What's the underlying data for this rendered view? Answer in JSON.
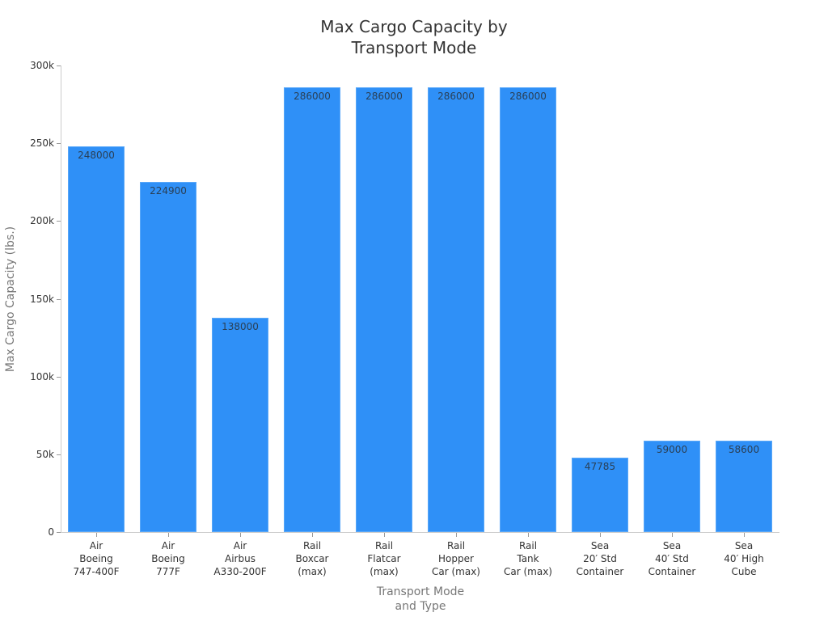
{
  "chart_data": {
    "type": "bar",
    "title": "Max Cargo Capacity by Transport Mode",
    "title_lines": [
      "Max Cargo Capacity by",
      "Transport Mode"
    ],
    "xlabel": "Transport Mode and Type",
    "xlabel_lines": [
      "Transport Mode",
      "and Type"
    ],
    "ylabel": "Max Cargo Capacity (lbs.)",
    "ylim": [
      0,
      300000
    ],
    "grid": false,
    "legend": null,
    "yticks": [
      {
        "value": 0,
        "label": "0"
      },
      {
        "value": 50000,
        "label": "50k"
      },
      {
        "value": 100000,
        "label": "100k"
      },
      {
        "value": 150000,
        "label": "150k"
      },
      {
        "value": 200000,
        "label": "200k"
      },
      {
        "value": 250000,
        "label": "250k"
      },
      {
        "value": 300000,
        "label": "300k"
      }
    ],
    "categories": [
      "Air Boeing 747-400F",
      "Air Boeing 777F",
      "Air Airbus A330-200F",
      "Rail Boxcar (max)",
      "Rail Flatcar (max)",
      "Rail Hopper Car (max)",
      "Rail Tank Car (max)",
      "Sea 20′ Std Container",
      "Sea 40′ Std Container",
      "Sea 40′ High Cube"
    ],
    "category_lines": [
      [
        "Air",
        "Boeing",
        "747-400F"
      ],
      [
        "Air",
        "Boeing",
        "777F"
      ],
      [
        "Air",
        "Airbus",
        "A330-200F"
      ],
      [
        "Rail",
        "Boxcar",
        "(max)"
      ],
      [
        "Rail",
        "Flatcar",
        "(max)"
      ],
      [
        "Rail",
        "Hopper",
        "Car (max)"
      ],
      [
        "Rail",
        "Tank",
        "Car (max)"
      ],
      [
        "Sea",
        "20′ Std",
        "Container"
      ],
      [
        "Sea",
        "40′ Std",
        "Container"
      ],
      [
        "Sea",
        "40′ High",
        "Cube"
      ]
    ],
    "values": [
      248000,
      224900,
      138000,
      286000,
      286000,
      286000,
      286000,
      47785,
      59000,
      58600
    ],
    "data_labels": [
      "248000",
      "224900",
      "138000",
      "286000",
      "286000",
      "286000",
      "286000",
      "47785",
      "59000",
      "58600"
    ],
    "colors": {
      "bar": "#2f90f7",
      "axis": "#cccccc",
      "text": "#333333",
      "axis_title": "#777777"
    }
  }
}
